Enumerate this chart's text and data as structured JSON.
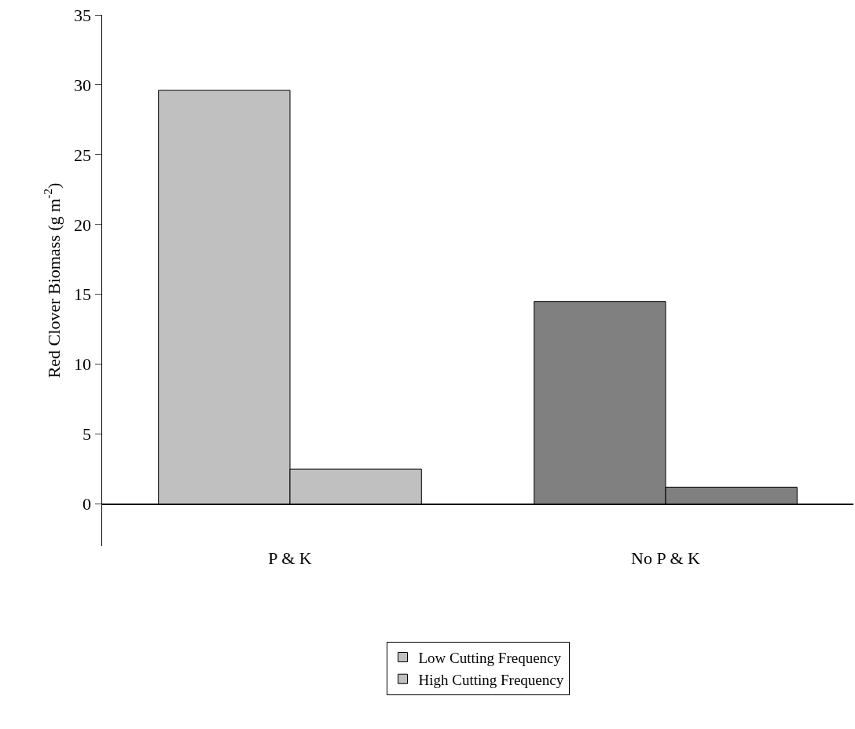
{
  "chart_data": {
    "type": "bar",
    "ylabel": "Red Clover Biomass (g m$^{-2}$)",
    "categories": [
      "P & K",
      "No P & K"
    ],
    "series": [
      {
        "name": "High Cutting Frequency",
        "colors": [
          "#c0c0c0",
          "#808080"
        ],
        "values": [
          29.6,
          14.5
        ]
      },
      {
        "name": "Low Cutting Frequency",
        "colors": [
          "#c0c0c0",
          "#808080"
        ],
        "values": [
          2.5,
          1.2
        ]
      }
    ],
    "ylim": [
      -3,
      35
    ],
    "yticks": [
      0,
      5,
      10,
      15,
      20,
      25,
      30,
      35
    ],
    "grid": false,
    "legend": "bottom"
  }
}
